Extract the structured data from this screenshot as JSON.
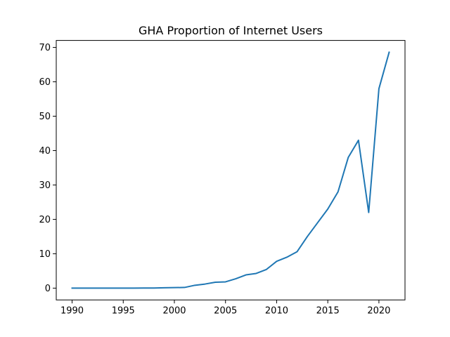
{
  "chart_data": {
    "type": "line",
    "title": "GHA Proportion of Internet Users",
    "xlabel": "",
    "ylabel": "",
    "xlim": [
      1988.45,
      2022.55
    ],
    "ylim": [
      -3.43,
      72.03
    ],
    "x_ticks": [
      1990,
      1995,
      2000,
      2005,
      2010,
      2015,
      2020
    ],
    "y_ticks": [
      0,
      10,
      20,
      30,
      40,
      50,
      60,
      70
    ],
    "grid": false,
    "legend": "none",
    "series": [
      {
        "color": "#1f77b4",
        "x": [
          1990,
          1991,
          1992,
          1993,
          1994,
          1995,
          1996,
          1997,
          1998,
          1999,
          2000,
          2001,
          2002,
          2003,
          2004,
          2005,
          2006,
          2007,
          2008,
          2009,
          2010,
          2011,
          2012,
          2013,
          2014,
          2015,
          2016,
          2017,
          2018,
          2019,
          2020,
          2021
        ],
        "y": [
          0,
          0,
          0,
          0,
          0,
          0.001,
          0.01,
          0.02,
          0.03,
          0.1,
          0.15,
          0.2,
          0.83,
          1.19,
          1.72,
          1.83,
          2.72,
          3.85,
          4.27,
          5.44,
          7.8,
          9.0,
          10.6,
          15.0,
          19.0,
          23.0,
          28.0,
          38.0,
          43.0,
          22.0,
          58.0,
          68.6
        ]
      }
    ]
  }
}
